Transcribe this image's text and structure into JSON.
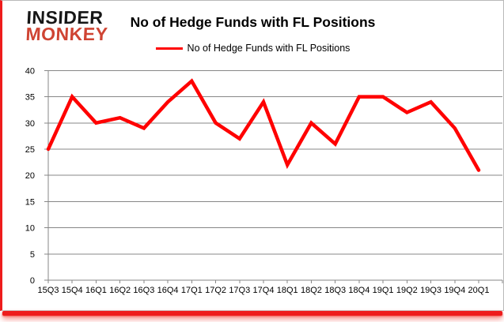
{
  "logo": {
    "line1": "INSIDER",
    "line2": "MONKEY"
  },
  "title": "No of Hedge Funds with FL Positions",
  "legend": {
    "label": "No of Hedge Funds with FL Positions",
    "line_color": "#ff0000"
  },
  "colors": {
    "series": "#ff0000",
    "grid": "#878787",
    "axis": "#878787",
    "text": "#000000",
    "logo_top": "#161616",
    "logo_bottom": "#cf4433",
    "frame_red": "#ee1c1c"
  },
  "chart_data": {
    "type": "line",
    "title": "No of Hedge Funds with FL Positions",
    "categories": [
      "15Q3",
      "15Q4",
      "16Q1",
      "16Q2",
      "16Q3",
      "16Q4",
      "17Q1",
      "17Q2",
      "17Q3",
      "17Q4",
      "18Q1",
      "18Q2",
      "18Q3",
      "18Q4",
      "19Q1",
      "19Q2",
      "19Q3",
      "19Q4",
      "20Q1"
    ],
    "series": [
      {
        "name": "No of Hedge Funds with FL Positions",
        "color": "#ff0000",
        "values": [
          25,
          35,
          30,
          31,
          29,
          34,
          38,
          30,
          27,
          34,
          22,
          30,
          26,
          35,
          35,
          32,
          34,
          29,
          21
        ]
      }
    ],
    "ylim": [
      0,
      40
    ],
    "yticks": [
      0,
      5,
      10,
      15,
      20,
      25,
      30,
      35,
      40
    ],
    "grid": true,
    "legend_position": "top"
  }
}
